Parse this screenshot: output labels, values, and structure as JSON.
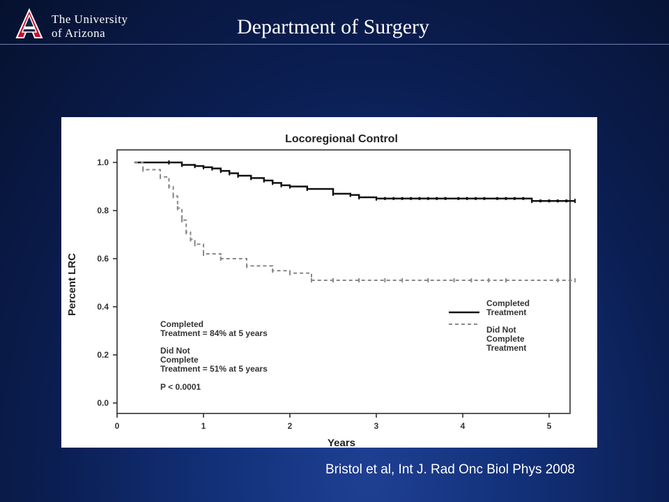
{
  "header": {
    "logo_line1": "The University",
    "logo_line2": "of Arizona",
    "title": "Department of Surgery"
  },
  "citation": "Bristol et al, Int J. Rad Onc Biol Phys 2008",
  "chart_data": {
    "type": "line",
    "title": "Locoregional Control",
    "xlabel": "Years",
    "ylabel": "Percent LRC",
    "xlim": [
      0,
      5.3
    ],
    "ylim": [
      0,
      1.05
    ],
    "xticks": [
      0,
      1,
      2,
      3,
      4,
      5
    ],
    "yticks": [
      0.0,
      0.2,
      0.4,
      0.6,
      0.8,
      1.0
    ],
    "grid": false,
    "legend_position": "right",
    "series": [
      {
        "name": "Completed Treatment",
        "style": "solid",
        "color": "#111111",
        "x": [
          0.2,
          0.6,
          0.75,
          0.9,
          1.0,
          1.1,
          1.2,
          1.3,
          1.4,
          1.55,
          1.7,
          1.8,
          1.9,
          2.0,
          2.2,
          2.5,
          2.7,
          2.8,
          3.0,
          4.8,
          5.3
        ],
        "y": [
          1.0,
          1.0,
          0.99,
          0.985,
          0.98,
          0.975,
          0.965,
          0.955,
          0.945,
          0.935,
          0.925,
          0.915,
          0.905,
          0.9,
          0.89,
          0.87,
          0.865,
          0.855,
          0.85,
          0.84,
          0.84
        ]
      },
      {
        "name": "Did Not Complete Treatment",
        "style": "dashed",
        "color": "#888888",
        "x": [
          0.2,
          0.3,
          0.5,
          0.6,
          0.65,
          0.7,
          0.75,
          0.8,
          0.85,
          0.9,
          1.0,
          1.2,
          1.5,
          1.8,
          2.0,
          2.25,
          5.3
        ],
        "y": [
          1.0,
          0.97,
          0.94,
          0.9,
          0.86,
          0.81,
          0.76,
          0.71,
          0.68,
          0.66,
          0.62,
          0.6,
          0.57,
          0.55,
          0.54,
          0.51,
          0.51
        ]
      }
    ],
    "annotations": [
      "Completed",
      "Treatment = 84%  at 5 years",
      "Did Not",
      "Complete",
      "Treatment = 51% at 5 years",
      "P < 0.0001"
    ],
    "legend": {
      "line1a": "Completed",
      "line1b": "Treatment",
      "line2a": "Did Not",
      "line2b": "Complete",
      "line2c": "Treatment"
    }
  }
}
